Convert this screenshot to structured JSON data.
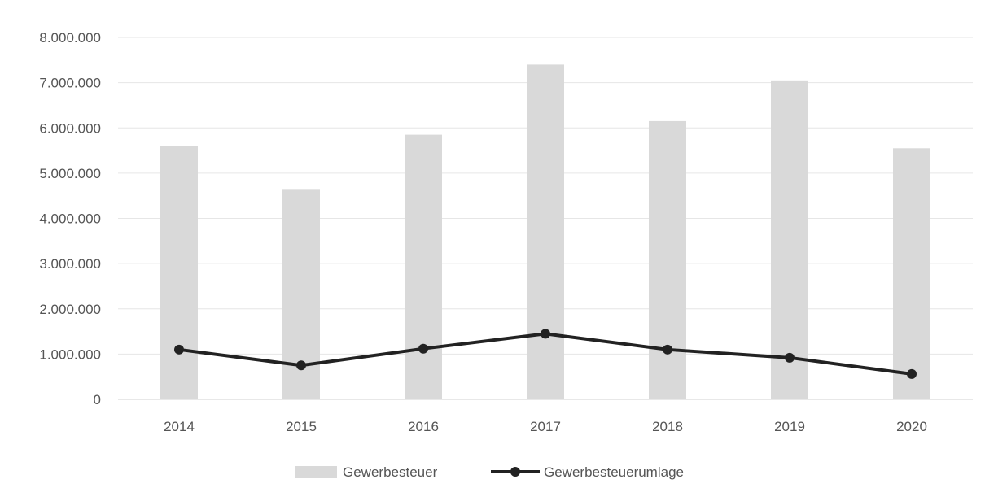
{
  "chart_data": {
    "type": "bar",
    "categories": [
      "2014",
      "2015",
      "2016",
      "2017",
      "2018",
      "2019",
      "2020"
    ],
    "series": [
      {
        "name": "Gewerbesteuer",
        "type": "bar",
        "color": "#d9d9d9",
        "values": [
          5600000,
          4650000,
          5850000,
          7400000,
          6150000,
          7050000,
          5550000
        ]
      },
      {
        "name": "Gewerbesteuerumlage",
        "type": "line",
        "color": "#222222",
        "values": [
          1100000,
          750000,
          1120000,
          1450000,
          1100000,
          920000,
          560000
        ]
      }
    ],
    "y_ticks": [
      "0",
      "1.000.000",
      "2.000.000",
      "3.000.000",
      "4.000.000",
      "5.000.000",
      "6.000.000",
      "7.000.000",
      "8.000.000"
    ],
    "ylim": [
      0,
      8000000
    ],
    "grid": true,
    "legend": {
      "placement": "bottom",
      "entries": [
        "Gewerbesteuer",
        "Gewerbesteuerumlage"
      ]
    }
  }
}
